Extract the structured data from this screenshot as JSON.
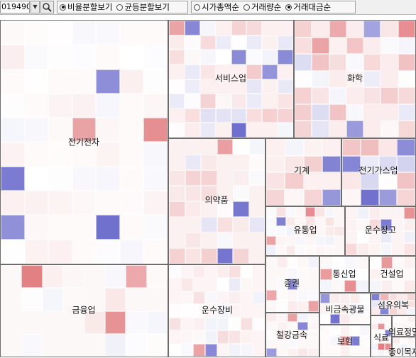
{
  "toolbar": {
    "code_value": "019490",
    "view_modes": [
      {
        "label": "비율분할보기",
        "selected": true
      },
      {
        "label": "균등분할보기",
        "selected": false
      }
    ],
    "sort_modes": [
      {
        "label": "시가총액순",
        "selected": false
      },
      {
        "label": "거래량순",
        "selected": false
      },
      {
        "label": "거래대금순",
        "selected": true
      }
    ]
  },
  "colors": {
    "up": "#d9565a",
    "down": "#4a4ac0",
    "neutral": "#fdf3f3"
  },
  "sectors": [
    {
      "name": "전기전자"
    },
    {
      "name": "서비스업"
    },
    {
      "name": "화학"
    },
    {
      "name": "의약품"
    },
    {
      "name": "기계"
    },
    {
      "name": "전기가스업"
    },
    {
      "name": "유통업"
    },
    {
      "name": "운수창고"
    },
    {
      "name": "금융업"
    },
    {
      "name": "운수장비"
    },
    {
      "name": "증권"
    },
    {
      "name": "통신업"
    },
    {
      "name": "건설업"
    },
    {
      "name": "비금속광물"
    },
    {
      "name": "섬유의복"
    },
    {
      "name": "철강금속"
    },
    {
      "name": "보험"
    },
    {
      "name": "식료"
    },
    {
      "name": "종이목재"
    },
    {
      "name": "의료정밀"
    }
  ]
}
